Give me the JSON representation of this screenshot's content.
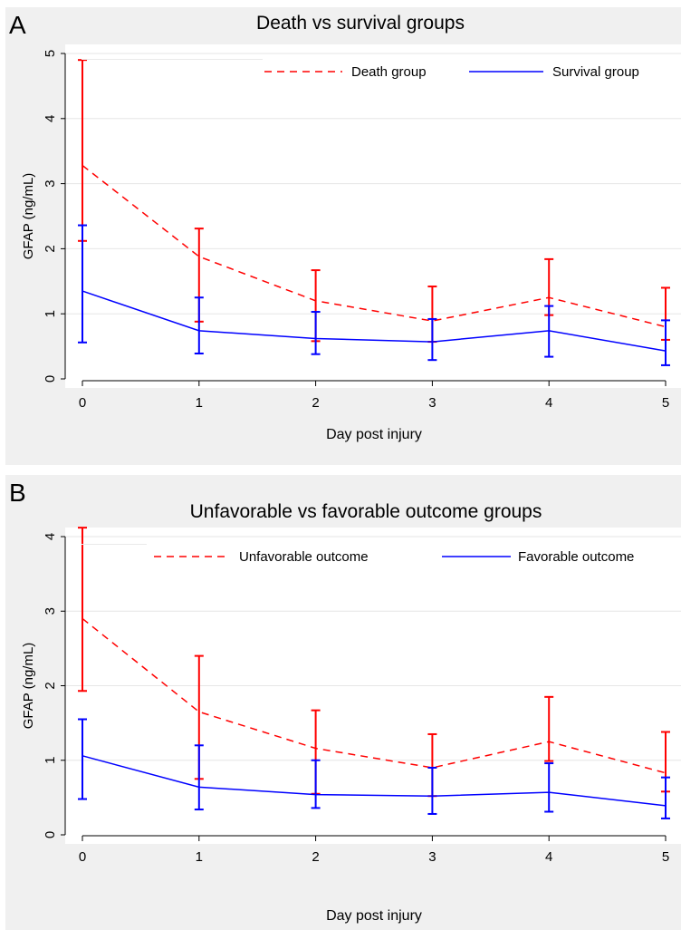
{
  "panels": [
    {
      "letter": "A"
    },
    {
      "letter": "B"
    }
  ],
  "chart_data": [
    {
      "type": "line",
      "title": "Death vs survival groups",
      "xlabel": "Day post injury",
      "ylabel": "GFAP (ng/mL)",
      "x": [
        0,
        1,
        2,
        3,
        4,
        5
      ],
      "xlim": [
        0,
        5
      ],
      "ylim": [
        0,
        5
      ],
      "yticks": [
        0,
        1,
        2,
        3,
        4,
        5
      ],
      "grid": "horizontal",
      "legend_position": "top",
      "series": [
        {
          "name": "Death group",
          "color": "#ff0000",
          "style": "dashed",
          "values": [
            3.28,
            1.88,
            1.2,
            0.89,
            1.25,
            0.8
          ],
          "err_low": [
            2.12,
            0.88,
            0.58,
            0.57,
            0.98,
            0.6
          ],
          "err_high": [
            4.9,
            2.31,
            1.67,
            1.42,
            1.84,
            1.4
          ]
        },
        {
          "name": "Survival group",
          "color": "#0000ff",
          "style": "solid",
          "values": [
            1.35,
            0.74,
            0.62,
            0.57,
            0.74,
            0.43
          ],
          "err_low": [
            0.56,
            0.39,
            0.38,
            0.29,
            0.34,
            0.21
          ],
          "err_high": [
            2.36,
            1.25,
            1.03,
            0.92,
            1.12,
            0.9
          ]
        }
      ]
    },
    {
      "type": "line",
      "title": "Unfavorable vs favorable outcome groups",
      "xlabel": "Day post injury",
      "ylabel": "GFAP (ng/mL)",
      "x": [
        0,
        1,
        2,
        3,
        4,
        5
      ],
      "xlim": [
        0,
        5
      ],
      "ylim": [
        0,
        4
      ],
      "yticks": [
        0,
        1,
        2,
        3,
        4
      ],
      "grid": "horizontal",
      "legend_position": "top",
      "series": [
        {
          "name": "Unfavorable outcome",
          "color": "#ff0000",
          "style": "dashed",
          "values": [
            2.9,
            1.65,
            1.16,
            0.9,
            1.25,
            0.83
          ],
          "err_low": [
            1.93,
            0.75,
            0.55,
            0.52,
            0.99,
            0.58
          ],
          "err_high": [
            4.12,
            2.4,
            1.67,
            1.35,
            1.85,
            1.38
          ]
        },
        {
          "name": "Favorable outcome",
          "color": "#0000ff",
          "style": "solid",
          "values": [
            1.06,
            0.64,
            0.54,
            0.52,
            0.57,
            0.39
          ],
          "err_low": [
            0.48,
            0.34,
            0.36,
            0.28,
            0.31,
            0.22
          ],
          "err_high": [
            1.55,
            1.2,
            1.0,
            0.9,
            0.96,
            0.77
          ]
        }
      ]
    }
  ]
}
